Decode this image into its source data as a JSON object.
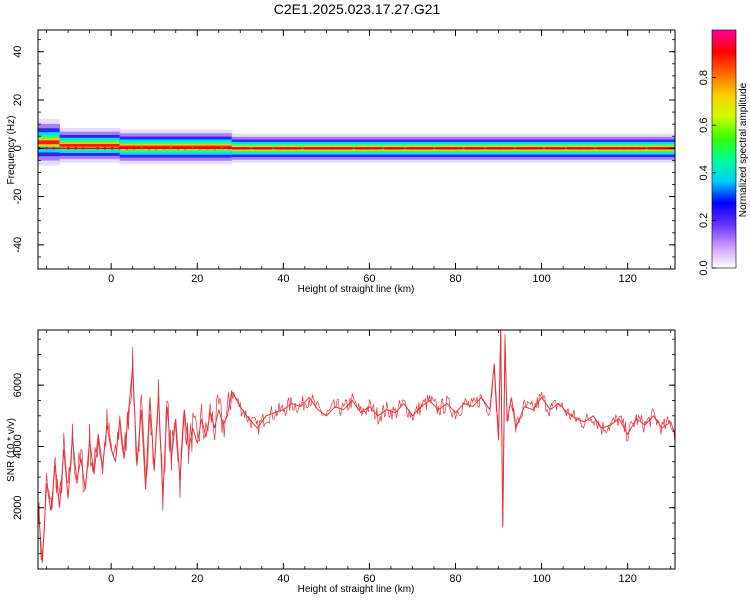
{
  "title": "C2E1.2025.023.17.27.G21",
  "chart_data": [
    {
      "type": "heatmap",
      "xlabel": "Height of straight line (km)",
      "ylabel": "Frequency (Hz)",
      "xlim": [
        -17,
        131
      ],
      "ylim": [
        -50,
        49
      ],
      "xticks": [
        0,
        20,
        40,
        60,
        80,
        100,
        120
      ],
      "yticks": [
        -40,
        -20,
        0,
        20,
        40
      ],
      "colorbar": {
        "label": "Normalized spectral amplitude",
        "range": [
          0,
          1
        ],
        "ticks": [
          0.0,
          0.2,
          0.4,
          0.6,
          0.8
        ],
        "colormap": [
          "#ffffff",
          "#cc99ff",
          "#6633ff",
          "#0000ff",
          "#00ccff",
          "#00ff99",
          "#33ff00",
          "#ccff00",
          "#ffcc00",
          "#ff6600",
          "#ff0000",
          "#ff0099"
        ]
      },
      "ridge": {
        "center_hz": 0,
        "segments": [
          {
            "x": [
              -17,
              -12
            ],
            "f": 2.5,
            "halfwidth": 4
          },
          {
            "x": [
              -12,
              2
            ],
            "f": 1.2,
            "halfwidth": 3
          },
          {
            "x": [
              2,
              28
            ],
            "f": 0.5,
            "halfwidth": 3
          },
          {
            "x": [
              28,
              131
            ],
            "f": 0.0,
            "halfwidth": 2.5
          }
        ]
      }
    },
    {
      "type": "line",
      "xlabel": "Height of straight line (km)",
      "ylabel": "SNR (10 * v/v)",
      "xlim": [
        -17,
        131
      ],
      "ylim": [
        0,
        7800
      ],
      "xticks": [
        0,
        20,
        40,
        60,
        80,
        100,
        120
      ],
      "yticks": [
        2000,
        4000,
        6000
      ],
      "color": "#e8333a",
      "series": [
        {
          "x": [
            -17,
            -16,
            -15,
            -14,
            -13,
            -12,
            -11,
            -10,
            -9,
            -8,
            -7,
            -6,
            -5,
            -4,
            -3,
            -2,
            -1,
            0,
            1,
            2,
            3,
            4,
            5,
            6,
            7,
            8,
            9,
            10,
            11,
            12,
            13,
            14,
            15,
            16,
            17,
            18,
            19,
            20,
            21,
            22,
            23,
            24,
            25,
            26,
            27,
            28,
            30,
            32,
            34,
            36,
            38,
            40,
            42,
            44,
            46,
            48,
            50,
            52,
            54,
            56,
            58,
            60,
            62,
            64,
            66,
            68,
            70,
            72,
            74,
            76,
            78,
            80,
            82,
            84,
            86,
            88,
            89,
            90,
            90.5,
            91,
            91.5,
            92,
            93,
            94,
            96,
            98,
            100,
            102,
            104,
            106,
            108,
            110,
            112,
            114,
            116,
            118,
            120,
            122,
            124,
            126,
            128,
            130,
            131
          ],
          "y": [
            2100,
            200,
            2800,
            1900,
            3400,
            2000,
            3900,
            2300,
            4300,
            2900,
            3600,
            2600,
            4200,
            3100,
            4400,
            3300,
            4700,
            3900,
            3500,
            4900,
            3600,
            5100,
            6600,
            3400,
            5200,
            2600,
            5600,
            3200,
            5700,
            2400,
            5300,
            3600,
            4900,
            2900,
            5200,
            3900,
            4600,
            4100,
            4900,
            4300,
            5100,
            4600,
            5200,
            4700,
            5000,
            5800,
            5300,
            4900,
            4600,
            5000,
            5100,
            5200,
            5400,
            5300,
            5600,
            5200,
            5000,
            5300,
            5200,
            5500,
            5100,
            5300,
            5000,
            5200,
            5100,
            5400,
            5000,
            5300,
            5500,
            5200,
            5400,
            5100,
            5400,
            5300,
            5600,
            5200,
            6700,
            4200,
            7800,
            1400,
            7500,
            4800,
            5600,
            4600,
            5300,
            5200,
            5600,
            5200,
            5400,
            5100,
            4900,
            4800,
            5000,
            4600,
            4700,
            4900,
            4400,
            4900,
            4700,
            5000,
            4600,
            4800,
            4400
          ]
        }
      ]
    }
  ]
}
